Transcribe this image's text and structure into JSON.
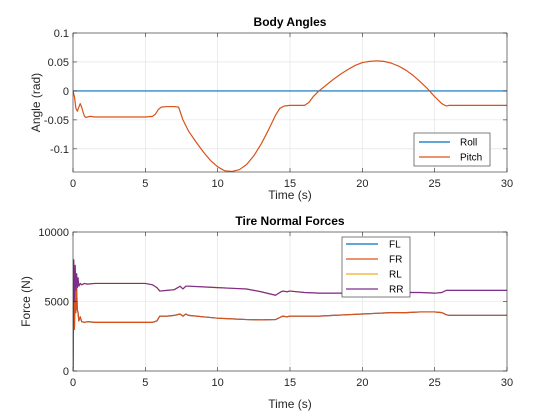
{
  "chart_data": [
    {
      "type": "line",
      "title": "Body Angles",
      "xlabel": "Time (s)",
      "ylabel": "Angle (rad)",
      "xlim": [
        0,
        30
      ],
      "ylim": [
        -0.14,
        0.1
      ],
      "xticks": [
        0,
        5,
        10,
        15,
        20,
        25,
        30
      ],
      "xtick_labels": [
        "0",
        "5",
        "10",
        "15",
        "20",
        "25",
        "30"
      ],
      "yticks": [
        -0.1,
        -0.05,
        0,
        0.05,
        0.1
      ],
      "ytick_labels": [
        "-0.1",
        "-0.05",
        "0",
        "0.05",
        "0.1"
      ],
      "grid": true,
      "legend_position": "bottom-right",
      "series": [
        {
          "name": "Roll",
          "color": "#0072BD",
          "x": [
            0,
            30
          ],
          "y": [
            0,
            0
          ]
        },
        {
          "name": "Pitch",
          "color": "#D95319",
          "x": [
            0,
            0.1,
            0.2,
            0.3,
            0.4,
            0.5,
            0.6,
            0.7,
            0.8,
            0.9,
            1.0,
            1.2,
            1.5,
            2.0,
            3.0,
            4.0,
            5.0,
            5.5,
            5.7,
            5.9,
            6.1,
            6.5,
            7.0,
            7.3,
            7.6,
            8.0,
            8.5,
            9.0,
            9.5,
            10.0,
            10.5,
            11.0,
            11.5,
            12.0,
            12.5,
            13.0,
            13.5,
            14.0,
            14.3,
            14.6,
            15.0,
            15.5,
            16.0,
            16.3,
            16.6,
            17.0,
            17.5,
            18.0,
            18.5,
            19.0,
            19.5,
            20.0,
            20.5,
            21.0,
            21.5,
            22.0,
            22.5,
            23.0,
            23.5,
            24.0,
            24.5,
            25.0,
            25.5,
            25.8,
            26.0,
            26.5,
            27.0,
            28.0,
            29.0,
            30.0
          ],
          "y": [
            0,
            -0.01,
            -0.03,
            -0.035,
            -0.028,
            -0.022,
            -0.028,
            -0.037,
            -0.044,
            -0.046,
            -0.045,
            -0.044,
            -0.045,
            -0.045,
            -0.045,
            -0.045,
            -0.045,
            -0.044,
            -0.04,
            -0.032,
            -0.028,
            -0.027,
            -0.027,
            -0.028,
            -0.05,
            -0.07,
            -0.088,
            -0.105,
            -0.12,
            -0.131,
            -0.138,
            -0.139,
            -0.136,
            -0.127,
            -0.112,
            -0.092,
            -0.068,
            -0.042,
            -0.03,
            -0.026,
            -0.025,
            -0.025,
            -0.025,
            -0.02,
            -0.01,
            0.0,
            0.01,
            0.02,
            0.029,
            0.037,
            0.044,
            0.049,
            0.051,
            0.052,
            0.051,
            0.048,
            0.043,
            0.036,
            0.027,
            0.016,
            0.004,
            -0.01,
            -0.022,
            -0.026,
            -0.025,
            -0.025,
            -0.025,
            -0.025,
            -0.025,
            -0.025
          ]
        }
      ]
    },
    {
      "type": "line",
      "title": "Tire Normal Forces",
      "xlabel": "Time (s)",
      "ylabel": "Force (N)",
      "xlim": [
        0,
        30
      ],
      "ylim": [
        0,
        10000
      ],
      "xticks": [
        0,
        5,
        10,
        15,
        20,
        25,
        30
      ],
      "xtick_labels": [
        "0",
        "5",
        "10",
        "15",
        "20",
        "25",
        "30"
      ],
      "yticks": [
        0,
        5000,
        10000
      ],
      "ytick_labels": [
        "0",
        "5000",
        "10000"
      ],
      "grid": true,
      "legend_position": "top-right",
      "series": [
        {
          "name": "FL",
          "color": "#0072BD",
          "x": [
            0,
            0.05,
            0.1,
            0.15,
            0.2,
            0.25,
            0.3,
            0.35,
            0.4,
            0.5,
            0.6,
            0.8,
            1.0,
            1.5,
            2.0,
            3.0,
            4.0,
            5.0,
            5.5,
            5.8,
            6.0,
            6.5,
            7.0,
            7.4,
            7.6,
            7.8,
            8.0,
            9.0,
            10.0,
            11.0,
            12.0,
            13.0,
            14.0,
            14.3,
            14.5,
            14.8,
            15.0,
            16.0,
            17.0,
            18.0,
            19.0,
            20.0,
            21.0,
            22.0,
            23.0,
            24.0,
            25.0,
            25.5,
            25.8,
            26.0,
            27.0,
            28.0,
            29.0,
            30.0
          ],
          "y": [
            200,
            7800,
            3000,
            6600,
            4200,
            6000,
            4400,
            4200,
            3600,
            3900,
            3550,
            3500,
            3550,
            3500,
            3500,
            3500,
            3500,
            3500,
            3500,
            3600,
            3950,
            3950,
            4000,
            4100,
            3950,
            4100,
            4000,
            3900,
            3800,
            3750,
            3700,
            3680,
            3700,
            3850,
            3950,
            3900,
            3950,
            3950,
            3950,
            4000,
            4050,
            4100,
            4150,
            4200,
            4200,
            4250,
            4250,
            4200,
            4050,
            4000,
            4000,
            4000,
            4000,
            4000
          ]
        },
        {
          "name": "FR",
          "color": "#D95319",
          "x": [
            0,
            0.05,
            0.1,
            0.15,
            0.2,
            0.25,
            0.3,
            0.35,
            0.4,
            0.5,
            0.6,
            0.8,
            1.0,
            1.5,
            2.0,
            3.0,
            4.0,
            5.0,
            5.5,
            5.8,
            6.0,
            6.5,
            7.0,
            7.4,
            7.6,
            7.8,
            8.0,
            9.0,
            10.0,
            11.0,
            12.0,
            13.0,
            14.0,
            14.3,
            14.5,
            14.8,
            15.0,
            16.0,
            17.0,
            18.0,
            19.0,
            20.0,
            21.0,
            22.0,
            23.0,
            24.0,
            25.0,
            25.5,
            25.8,
            26.0,
            27.0,
            28.0,
            29.0,
            30.0
          ],
          "y": [
            200,
            7800,
            3000,
            6600,
            4200,
            6000,
            4400,
            4200,
            3600,
            3900,
            3550,
            3500,
            3550,
            3500,
            3500,
            3500,
            3500,
            3500,
            3500,
            3600,
            3950,
            3950,
            4000,
            4100,
            3950,
            4100,
            4000,
            3900,
            3800,
            3750,
            3700,
            3680,
            3700,
            3850,
            3950,
            3900,
            3950,
            3950,
            3950,
            4000,
            4050,
            4100,
            4150,
            4200,
            4200,
            4250,
            4250,
            4200,
            4050,
            4000,
            4000,
            4000,
            4000,
            4000
          ]
        },
        {
          "name": "RL",
          "color": "#EDB120",
          "x": [
            0,
            0.05,
            0.1,
            0.15,
            0.2,
            0.25,
            0.3,
            0.35,
            0.4,
            0.5,
            0.6,
            0.8,
            1.0,
            1.5,
            2.0,
            3.0,
            4.0,
            5.0,
            5.5,
            5.8,
            6.0,
            6.5,
            7.0,
            7.4,
            7.6,
            7.8,
            8.0,
            9.0,
            10.0,
            11.0,
            12.0,
            13.0,
            14.0,
            14.3,
            14.5,
            14.8,
            15.0,
            16.0,
            17.0,
            18.0,
            19.0,
            20.0,
            21.0,
            22.0,
            23.0,
            24.0,
            25.0,
            25.5,
            25.8,
            26.0,
            27.0,
            28.0,
            29.0,
            30.0
          ],
          "y": [
            0,
            8000,
            5000,
            7600,
            5800,
            7000,
            6000,
            6700,
            6100,
            6300,
            6200,
            6300,
            6250,
            6300,
            6300,
            6300,
            6300,
            6300,
            6200,
            6000,
            5750,
            5800,
            5850,
            6100,
            5900,
            6100,
            6100,
            6050,
            6000,
            5950,
            5900,
            5700,
            5450,
            5650,
            5750,
            5700,
            5750,
            5650,
            5600,
            5600,
            5600,
            5550,
            5550,
            5600,
            5650,
            5650,
            5600,
            5650,
            5800,
            5800,
            5800,
            5800,
            5800,
            5800
          ]
        },
        {
          "name": "RR",
          "color": "#7E2F8E",
          "x": [
            0,
            0.05,
            0.1,
            0.15,
            0.2,
            0.25,
            0.3,
            0.35,
            0.4,
            0.5,
            0.6,
            0.8,
            1.0,
            1.5,
            2.0,
            3.0,
            4.0,
            5.0,
            5.5,
            5.8,
            6.0,
            6.5,
            7.0,
            7.4,
            7.6,
            7.8,
            8.0,
            9.0,
            10.0,
            11.0,
            12.0,
            13.0,
            14.0,
            14.3,
            14.5,
            14.8,
            15.0,
            16.0,
            17.0,
            18.0,
            19.0,
            20.0,
            21.0,
            22.0,
            23.0,
            24.0,
            25.0,
            25.5,
            25.8,
            26.0,
            27.0,
            28.0,
            29.0,
            30.0
          ],
          "y": [
            0,
            8000,
            5000,
            7600,
            5800,
            7000,
            6000,
            6700,
            6100,
            6300,
            6200,
            6300,
            6250,
            6300,
            6300,
            6300,
            6300,
            6300,
            6200,
            6000,
            5750,
            5800,
            5850,
            6100,
            5900,
            6100,
            6100,
            6050,
            6000,
            5950,
            5900,
            5700,
            5450,
            5650,
            5750,
            5700,
            5750,
            5650,
            5600,
            5600,
            5600,
            5550,
            5550,
            5600,
            5650,
            5650,
            5600,
            5650,
            5800,
            5800,
            5800,
            5800,
            5800,
            5800
          ]
        }
      ]
    }
  ]
}
